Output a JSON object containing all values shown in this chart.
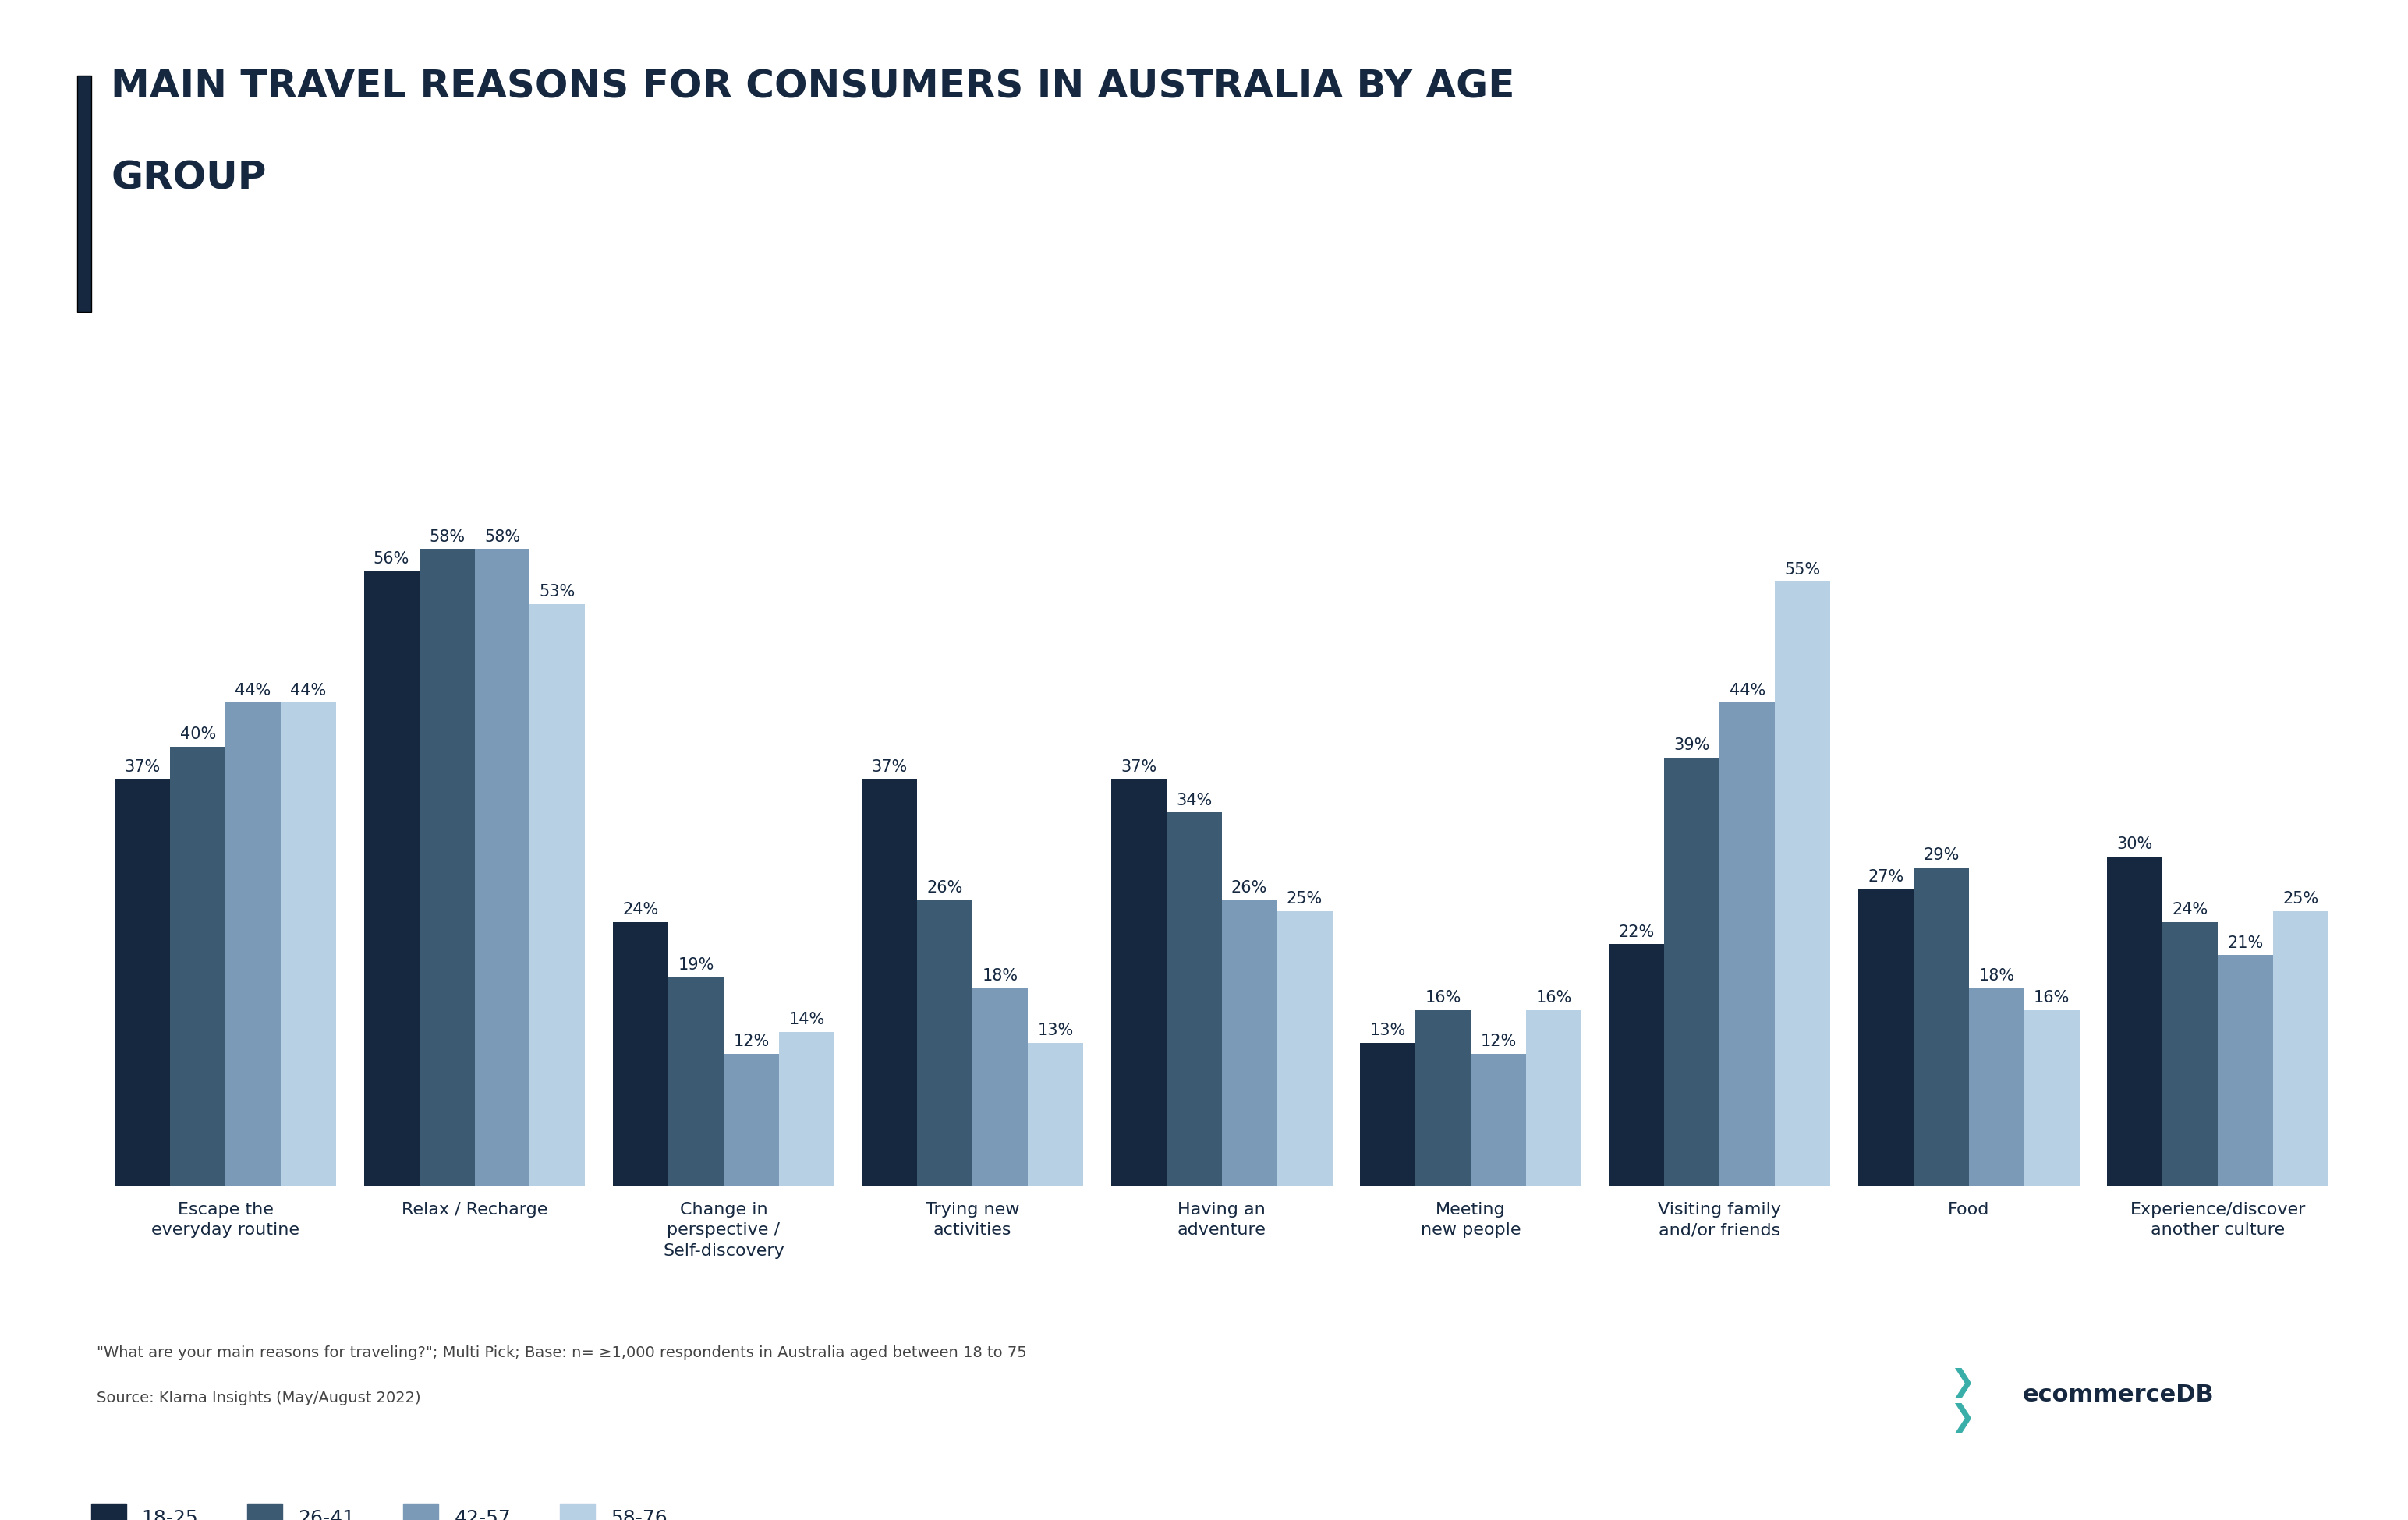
{
  "title_line1": "MAIN TRAVEL REASONS FOR CONSUMERS IN AUSTRALIA BY AGE",
  "title_line2": "GROUP",
  "categories": [
    "Escape the\neveryday routine",
    "Relax / Recharge",
    "Change in\nperspective /\nSelf-discovery",
    "Trying new\nactivities",
    "Having an\nadventure",
    "Meeting\nnew people",
    "Visiting family\nand/or friends",
    "Food",
    "Experience/discover\nanother culture"
  ],
  "series": {
    "18-25": [
      37,
      56,
      24,
      37,
      37,
      13,
      22,
      27,
      30
    ],
    "26-41": [
      40,
      58,
      19,
      26,
      34,
      16,
      39,
      29,
      24
    ],
    "42-57": [
      44,
      58,
      12,
      18,
      26,
      12,
      44,
      18,
      21
    ],
    "58-76": [
      44,
      53,
      14,
      13,
      25,
      16,
      55,
      16,
      25
    ]
  },
  "colors": {
    "18-25": "#152840",
    "26-41": "#3d5a73",
    "42-57": "#7a9ab8",
    "58-76": "#b8d0e3"
  },
  "ylim": [
    0,
    72
  ],
  "title_color": "#152840",
  "background_color": "#ffffff",
  "footnote_line1": "\"What are your main reasons for traveling?\"; Multi Pick; Base: n= ≥1,000 respondents in Australia aged between 18 to 75",
  "footnote_line2": "Source: Klarna Insights (May/August 2022)"
}
